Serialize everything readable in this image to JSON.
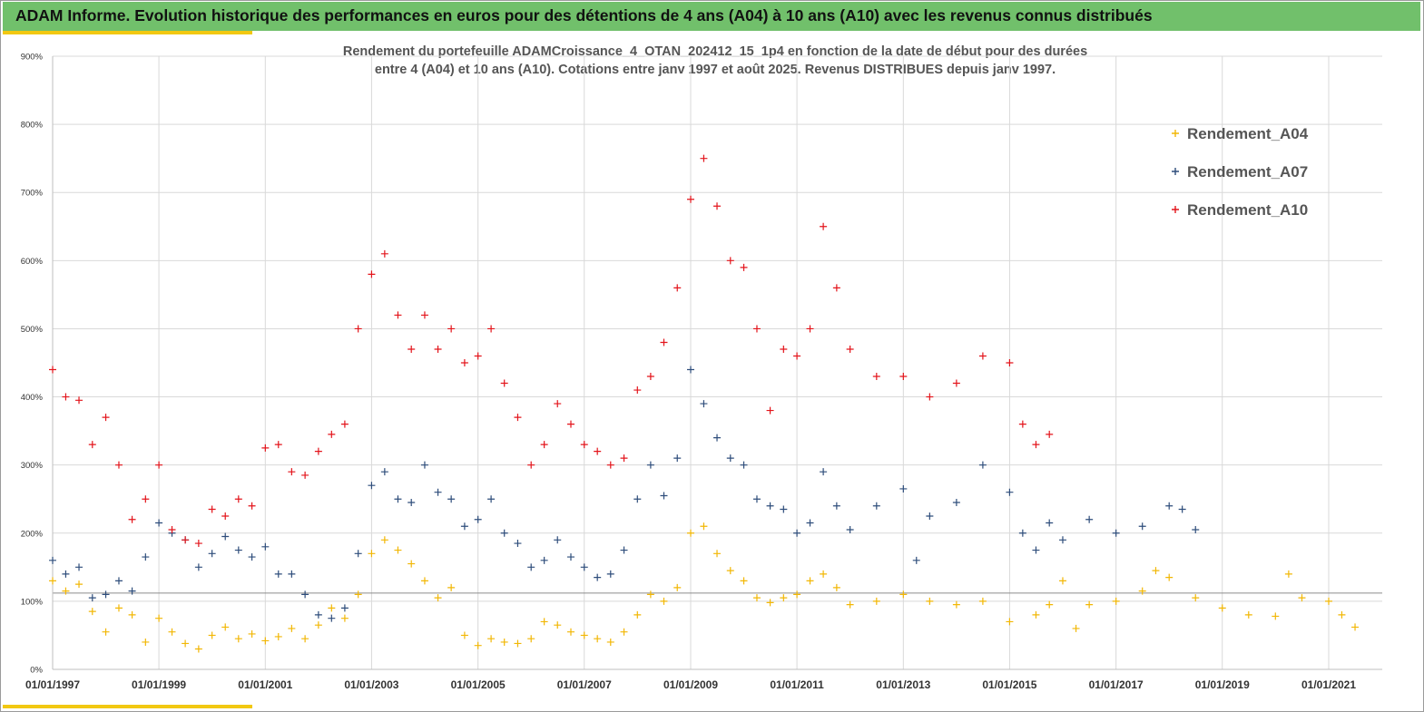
{
  "header": {
    "title": "ADAM Informe. Evolution historique des performances en euros pour des détentions de 4 ans (A04) à 10 ans (A10) avec les revenus connus distribués"
  },
  "chart_data": {
    "type": "scatter",
    "title_line1": "Rendement du portefeuille ADAMCroissance_4_OTAN_202412_15_1p4  en fonction de la date de début pour des durées",
    "title_line2": "entre 4 (A04) et 10 ans (A10). Cotations entre janv 1997 et août 2025. Revenus DISTRIBUES depuis janv 1997.",
    "xlabel": "",
    "ylabel": "",
    "x_range": [
      "1997-01-01",
      "2022-01-01"
    ],
    "ylim": [
      0,
      900
    ],
    "y_unit": "%",
    "x_ticks": [
      "01/01/1997",
      "01/01/1999",
      "01/01/2001",
      "01/01/2003",
      "01/01/2005",
      "01/01/2007",
      "01/01/2009",
      "01/01/2011",
      "01/01/2013",
      "01/01/2015",
      "01/01/2017",
      "01/01/2019",
      "01/01/2021"
    ],
    "y_ticks": [
      "0%",
      "100%",
      "200%",
      "300%",
      "400%",
      "500%",
      "600%",
      "700%",
      "800%",
      "900%"
    ],
    "reference_line_y": 112,
    "legend_position": "top-right",
    "marker": "+",
    "series": [
      {
        "name": "Rendement_A04",
        "color": "#f2b705",
        "points": [
          [
            "1997-01-01",
            130
          ],
          [
            "1997-04-01",
            115
          ],
          [
            "1997-07-01",
            125
          ],
          [
            "1997-10-01",
            85
          ],
          [
            "1998-01-01",
            55
          ],
          [
            "1998-04-01",
            90
          ],
          [
            "1998-07-01",
            80
          ],
          [
            "1998-10-01",
            40
          ],
          [
            "1999-01-01",
            75
          ],
          [
            "1999-04-01",
            55
          ],
          [
            "1999-07-01",
            38
          ],
          [
            "1999-10-01",
            30
          ],
          [
            "2000-01-01",
            50
          ],
          [
            "2000-04-01",
            62
          ],
          [
            "2000-07-01",
            45
          ],
          [
            "2000-10-01",
            52
          ],
          [
            "2001-01-01",
            42
          ],
          [
            "2001-04-01",
            48
          ],
          [
            "2001-07-01",
            60
          ],
          [
            "2001-10-01",
            45
          ],
          [
            "2002-01-01",
            65
          ],
          [
            "2002-04-01",
            90
          ],
          [
            "2002-07-01",
            75
          ],
          [
            "2002-10-01",
            110
          ],
          [
            "2003-01-01",
            170
          ],
          [
            "2003-04-01",
            190
          ],
          [
            "2003-07-01",
            175
          ],
          [
            "2003-10-01",
            155
          ],
          [
            "2004-01-01",
            130
          ],
          [
            "2004-04-01",
            105
          ],
          [
            "2004-07-01",
            120
          ],
          [
            "2004-10-01",
            50
          ],
          [
            "2005-01-01",
            35
          ],
          [
            "2005-04-01",
            45
          ],
          [
            "2005-07-01",
            40
          ],
          [
            "2005-10-01",
            38
          ],
          [
            "2006-01-01",
            45
          ],
          [
            "2006-04-01",
            70
          ],
          [
            "2006-07-01",
            65
          ],
          [
            "2006-10-01",
            55
          ],
          [
            "2007-01-01",
            50
          ],
          [
            "2007-04-01",
            45
          ],
          [
            "2007-07-01",
            40
          ],
          [
            "2007-10-01",
            55
          ],
          [
            "2008-01-01",
            80
          ],
          [
            "2008-04-01",
            110
          ],
          [
            "2008-07-01",
            100
          ],
          [
            "2008-10-01",
            120
          ],
          [
            "2009-01-01",
            200
          ],
          [
            "2009-04-01",
            210
          ],
          [
            "2009-07-01",
            170
          ],
          [
            "2009-10-01",
            145
          ],
          [
            "2010-01-01",
            130
          ],
          [
            "2010-04-01",
            105
          ],
          [
            "2010-07-01",
            98
          ],
          [
            "2010-10-01",
            105
          ],
          [
            "2011-01-01",
            110
          ],
          [
            "2011-04-01",
            130
          ],
          [
            "2011-07-01",
            140
          ],
          [
            "2011-10-01",
            120
          ],
          [
            "2012-01-01",
            95
          ],
          [
            "2012-07-01",
            100
          ],
          [
            "2013-01-01",
            110
          ],
          [
            "2013-07-01",
            100
          ],
          [
            "2014-01-01",
            95
          ],
          [
            "2014-07-01",
            100
          ],
          [
            "2015-01-01",
            70
          ],
          [
            "2015-07-01",
            80
          ],
          [
            "2015-10-01",
            95
          ],
          [
            "2016-01-01",
            130
          ],
          [
            "2016-04-01",
            60
          ],
          [
            "2016-07-01",
            95
          ],
          [
            "2017-01-01",
            100
          ],
          [
            "2017-07-01",
            115
          ],
          [
            "2017-10-01",
            145
          ],
          [
            "2018-01-01",
            135
          ],
          [
            "2018-07-01",
            105
          ],
          [
            "2019-01-01",
            90
          ],
          [
            "2019-07-01",
            80
          ],
          [
            "2020-01-01",
            78
          ],
          [
            "2020-04-01",
            140
          ],
          [
            "2020-07-01",
            105
          ],
          [
            "2021-01-01",
            100
          ],
          [
            "2021-04-01",
            80
          ],
          [
            "2021-07-01",
            62
          ]
        ]
      },
      {
        "name": "Rendement_A07",
        "color": "#2e4d7b",
        "points": [
          [
            "1997-01-01",
            160
          ],
          [
            "1997-04-01",
            140
          ],
          [
            "1997-07-01",
            150
          ],
          [
            "1997-10-01",
            105
          ],
          [
            "1998-01-01",
            110
          ],
          [
            "1998-04-01",
            130
          ],
          [
            "1998-07-01",
            115
          ],
          [
            "1998-10-01",
            165
          ],
          [
            "1999-01-01",
            215
          ],
          [
            "1999-04-01",
            200
          ],
          [
            "1999-07-01",
            190
          ],
          [
            "1999-10-01",
            150
          ],
          [
            "2000-01-01",
            170
          ],
          [
            "2000-04-01",
            195
          ],
          [
            "2000-07-01",
            175
          ],
          [
            "2000-10-01",
            165
          ],
          [
            "2001-01-01",
            180
          ],
          [
            "2001-04-01",
            140
          ],
          [
            "2001-07-01",
            140
          ],
          [
            "2001-10-01",
            110
          ],
          [
            "2002-01-01",
            80
          ],
          [
            "2002-04-01",
            75
          ],
          [
            "2002-07-01",
            90
          ],
          [
            "2002-10-01",
            170
          ],
          [
            "2003-01-01",
            270
          ],
          [
            "2003-04-01",
            290
          ],
          [
            "2003-07-01",
            250
          ],
          [
            "2003-10-01",
            245
          ],
          [
            "2004-01-01",
            300
          ],
          [
            "2004-04-01",
            260
          ],
          [
            "2004-07-01",
            250
          ],
          [
            "2004-10-01",
            210
          ],
          [
            "2005-01-01",
            220
          ],
          [
            "2005-04-01",
            250
          ],
          [
            "2005-07-01",
            200
          ],
          [
            "2005-10-01",
            185
          ],
          [
            "2006-01-01",
            150
          ],
          [
            "2006-04-01",
            160
          ],
          [
            "2006-07-01",
            190
          ],
          [
            "2006-10-01",
            165
          ],
          [
            "2007-01-01",
            150
          ],
          [
            "2007-04-01",
            135
          ],
          [
            "2007-07-01",
            140
          ],
          [
            "2007-10-01",
            175
          ],
          [
            "2008-01-01",
            250
          ],
          [
            "2008-04-01",
            300
          ],
          [
            "2008-07-01",
            255
          ],
          [
            "2008-10-01",
            310
          ],
          [
            "2009-01-01",
            440
          ],
          [
            "2009-04-01",
            390
          ],
          [
            "2009-07-01",
            340
          ],
          [
            "2009-10-01",
            310
          ],
          [
            "2010-01-01",
            300
          ],
          [
            "2010-04-01",
            250
          ],
          [
            "2010-07-01",
            240
          ],
          [
            "2010-10-01",
            235
          ],
          [
            "2011-01-01",
            200
          ],
          [
            "2011-04-01",
            215
          ],
          [
            "2011-07-01",
            290
          ],
          [
            "2011-10-01",
            240
          ],
          [
            "2012-01-01",
            205
          ],
          [
            "2012-07-01",
            240
          ],
          [
            "2013-01-01",
            265
          ],
          [
            "2013-04-01",
            160
          ],
          [
            "2013-07-01",
            225
          ],
          [
            "2014-01-01",
            245
          ],
          [
            "2014-07-01",
            300
          ],
          [
            "2015-01-01",
            260
          ],
          [
            "2015-04-01",
            200
          ],
          [
            "2015-07-01",
            175
          ],
          [
            "2015-10-01",
            215
          ],
          [
            "2016-01-01",
            190
          ],
          [
            "2016-07-01",
            220
          ],
          [
            "2017-01-01",
            200
          ],
          [
            "2017-07-01",
            210
          ],
          [
            "2018-01-01",
            240
          ],
          [
            "2018-04-01",
            235
          ],
          [
            "2018-07-01",
            205
          ]
        ]
      },
      {
        "name": "Rendement_A10",
        "color": "#e3141b",
        "points": [
          [
            "1997-01-01",
            440
          ],
          [
            "1997-04-01",
            400
          ],
          [
            "1997-07-01",
            395
          ],
          [
            "1997-10-01",
            330
          ],
          [
            "1998-01-01",
            370
          ],
          [
            "1998-04-01",
            300
          ],
          [
            "1998-07-01",
            220
          ],
          [
            "1998-10-01",
            250
          ],
          [
            "1999-01-01",
            300
          ],
          [
            "1999-04-01",
            205
          ],
          [
            "1999-07-01",
            190
          ],
          [
            "1999-10-01",
            185
          ],
          [
            "2000-01-01",
            235
          ],
          [
            "2000-04-01",
            225
          ],
          [
            "2000-07-01",
            250
          ],
          [
            "2000-10-01",
            240
          ],
          [
            "2001-01-01",
            325
          ],
          [
            "2001-04-01",
            330
          ],
          [
            "2001-07-01",
            290
          ],
          [
            "2001-10-01",
            285
          ],
          [
            "2002-01-01",
            320
          ],
          [
            "2002-04-01",
            345
          ],
          [
            "2002-07-01",
            360
          ],
          [
            "2002-10-01",
            500
          ],
          [
            "2003-01-01",
            580
          ],
          [
            "2003-04-01",
            610
          ],
          [
            "2003-07-01",
            520
          ],
          [
            "2003-10-01",
            470
          ],
          [
            "2004-01-01",
            520
          ],
          [
            "2004-04-01",
            470
          ],
          [
            "2004-07-01",
            500
          ],
          [
            "2004-10-01",
            450
          ],
          [
            "2005-01-01",
            460
          ],
          [
            "2005-04-01",
            500
          ],
          [
            "2005-07-01",
            420
          ],
          [
            "2005-10-01",
            370
          ],
          [
            "2006-01-01",
            300
          ],
          [
            "2006-04-01",
            330
          ],
          [
            "2006-07-01",
            390
          ],
          [
            "2006-10-01",
            360
          ],
          [
            "2007-01-01",
            330
          ],
          [
            "2007-04-01",
            320
          ],
          [
            "2007-07-01",
            300
          ],
          [
            "2007-10-01",
            310
          ],
          [
            "2008-01-01",
            410
          ],
          [
            "2008-04-01",
            430
          ],
          [
            "2008-07-01",
            480
          ],
          [
            "2008-10-01",
            560
          ],
          [
            "2009-01-01",
            690
          ],
          [
            "2009-04-01",
            750
          ],
          [
            "2009-07-01",
            680
          ],
          [
            "2009-10-01",
            600
          ],
          [
            "2010-01-01",
            590
          ],
          [
            "2010-04-01",
            500
          ],
          [
            "2010-07-01",
            380
          ],
          [
            "2010-10-01",
            470
          ],
          [
            "2011-01-01",
            460
          ],
          [
            "2011-04-01",
            500
          ],
          [
            "2011-07-01",
            650
          ],
          [
            "2011-10-01",
            560
          ],
          [
            "2012-01-01",
            470
          ],
          [
            "2012-07-01",
            430
          ],
          [
            "2013-01-01",
            430
          ],
          [
            "2013-07-01",
            400
          ],
          [
            "2014-01-01",
            420
          ],
          [
            "2014-07-01",
            460
          ],
          [
            "2015-01-01",
            450
          ],
          [
            "2015-04-01",
            360
          ],
          [
            "2015-07-01",
            330
          ],
          [
            "2015-10-01",
            345
          ]
        ]
      }
    ]
  }
}
